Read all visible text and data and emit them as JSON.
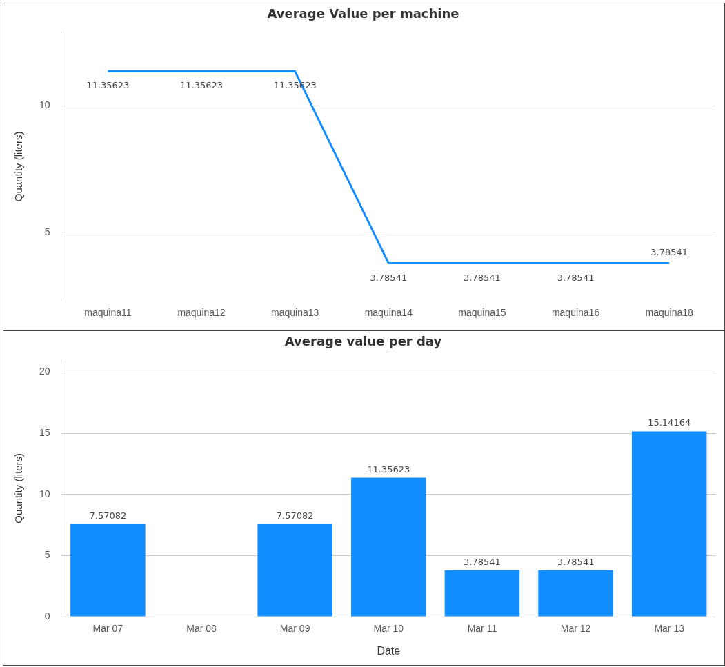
{
  "chart_data": [
    {
      "type": "line",
      "title": "Average Value per machine",
      "ylabel": "Quantity (liters)",
      "categories": [
        "maquina11",
        "maquina12",
        "maquina13",
        "maquina14",
        "maquina15",
        "maquina16",
        "maquina18"
      ],
      "series": [
        {
          "color": "#118dff",
          "values": [
            11.35623,
            11.35623,
            11.35623,
            3.78541,
            3.78541,
            3.78541,
            3.78541
          ]
        }
      ],
      "ylim": [
        2.3,
        12.9
      ],
      "yticks": [
        5,
        10
      ],
      "grid": "y",
      "legend": false,
      "data_labels": true,
      "marker": "none"
    },
    {
      "type": "bar",
      "title": "Average value per day",
      "xlabel": "Date",
      "ylabel": "Quantity (liters)",
      "categories": [
        "Mar 07",
        "Mar 08",
        "Mar 09",
        "Mar 10",
        "Mar 11",
        "Mar 12",
        "Mar 13"
      ],
      "series": [
        {
          "color": "#118dff",
          "values": [
            7.57082,
            null,
            7.57082,
            11.35623,
            3.78541,
            3.78541,
            15.14164
          ]
        }
      ],
      "ylim": [
        0,
        21
      ],
      "yticks": [
        0,
        5,
        10,
        15,
        20
      ],
      "grid": "y",
      "legend": false,
      "data_labels": true
    }
  ]
}
